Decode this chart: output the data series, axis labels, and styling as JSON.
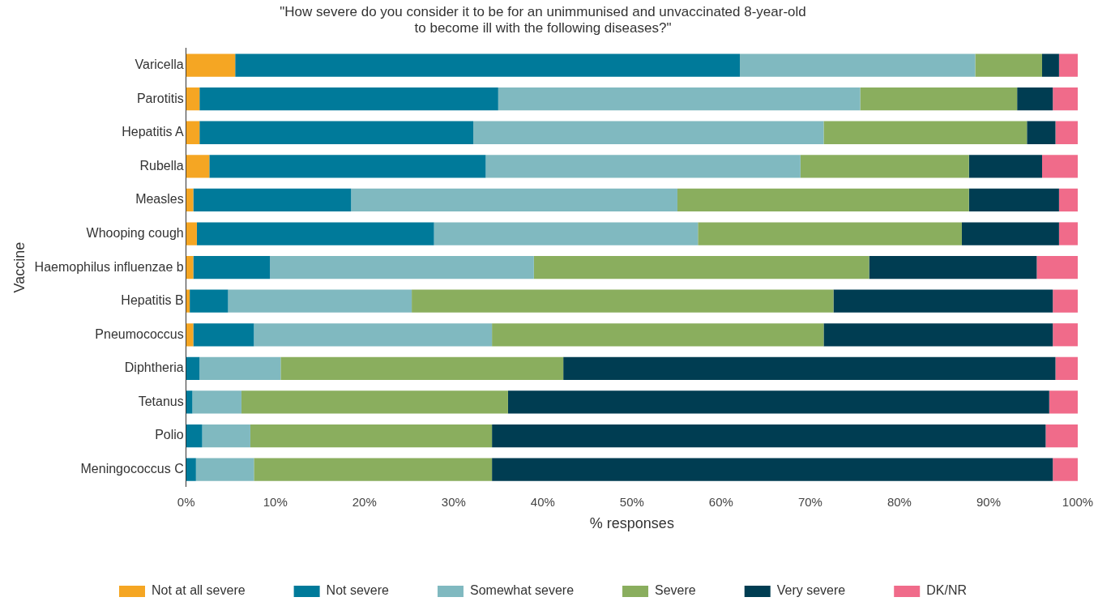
{
  "chart_data": {
    "type": "bar",
    "orientation": "horizontal",
    "stacked": true,
    "title": "\"How severe do you consider it to be for an unimmunised and unvaccinated 8-year-old\nto become ill with the following diseases?\"",
    "xlabel": "% responses",
    "ylabel": "Vaccine",
    "categories": [
      "Varicella",
      "Parotitis",
      "Hepatitis A",
      "Rubella",
      "Measles",
      "Whooping cough",
      "Haemophilus influenzae b",
      "Hepatitis B",
      "Pneumococcus",
      "Diphtheria",
      "Tetanus",
      "Polio",
      "Meningococcus C"
    ],
    "series": [
      {
        "name": "Not at all severe",
        "color": "#f5a623",
        "values": [
          5.5,
          1.5,
          1.5,
          2.6,
          0.8,
          1.2,
          0.8,
          0.4,
          0.8,
          0,
          0,
          0,
          0
        ]
      },
      {
        "name": "Not severe",
        "color": "#007a9a",
        "values": [
          56.6,
          33.5,
          30.7,
          31.0,
          17.7,
          26.6,
          8.6,
          4.3,
          6.8,
          1.5,
          0.7,
          1.8,
          1.1
        ]
      },
      {
        "name": "Somewhat severe",
        "color": "#80b9c0",
        "values": [
          26.4,
          40.6,
          39.3,
          35.3,
          36.6,
          29.6,
          29.6,
          20.6,
          26.7,
          9.1,
          5.5,
          5.4,
          6.5
        ]
      },
      {
        "name": "Severe",
        "color": "#8aae5e",
        "values": [
          7.5,
          17.6,
          22.8,
          18.9,
          32.7,
          29.6,
          37.6,
          47.3,
          37.2,
          31.7,
          29.9,
          27.1,
          26.7
        ]
      },
      {
        "name": "Very severe",
        "color": "#003d52",
        "values": [
          1.9,
          4.0,
          3.2,
          8.2,
          10.1,
          10.9,
          18.8,
          24.6,
          25.7,
          55.2,
          60.7,
          62.1,
          62.9
        ]
      },
      {
        "name": "DK/NR",
        "color": "#f06b8a",
        "values": [
          2.1,
          2.8,
          2.5,
          4.0,
          2.1,
          2.1,
          4.6,
          2.8,
          2.8,
          2.5,
          3.2,
          3.6,
          2.8
        ]
      }
    ],
    "xlim": [
      0,
      100
    ],
    "xticks": [
      {
        "value": 0,
        "label": "0%"
      },
      {
        "value": 10,
        "label": "10%"
      },
      {
        "value": 20,
        "label": "20%"
      },
      {
        "value": 30,
        "label": "30%"
      },
      {
        "value": 40,
        "label": "40%"
      },
      {
        "value": 50,
        "label": "50%"
      },
      {
        "value": 60,
        "label": "60%"
      },
      {
        "value": 70,
        "label": "70%"
      },
      {
        "value": 80,
        "label": "80%"
      },
      {
        "value": 90,
        "label": "90%"
      },
      {
        "value": 100,
        "label": "100%"
      }
    ],
    "grid": false,
    "legend": "bottom"
  }
}
